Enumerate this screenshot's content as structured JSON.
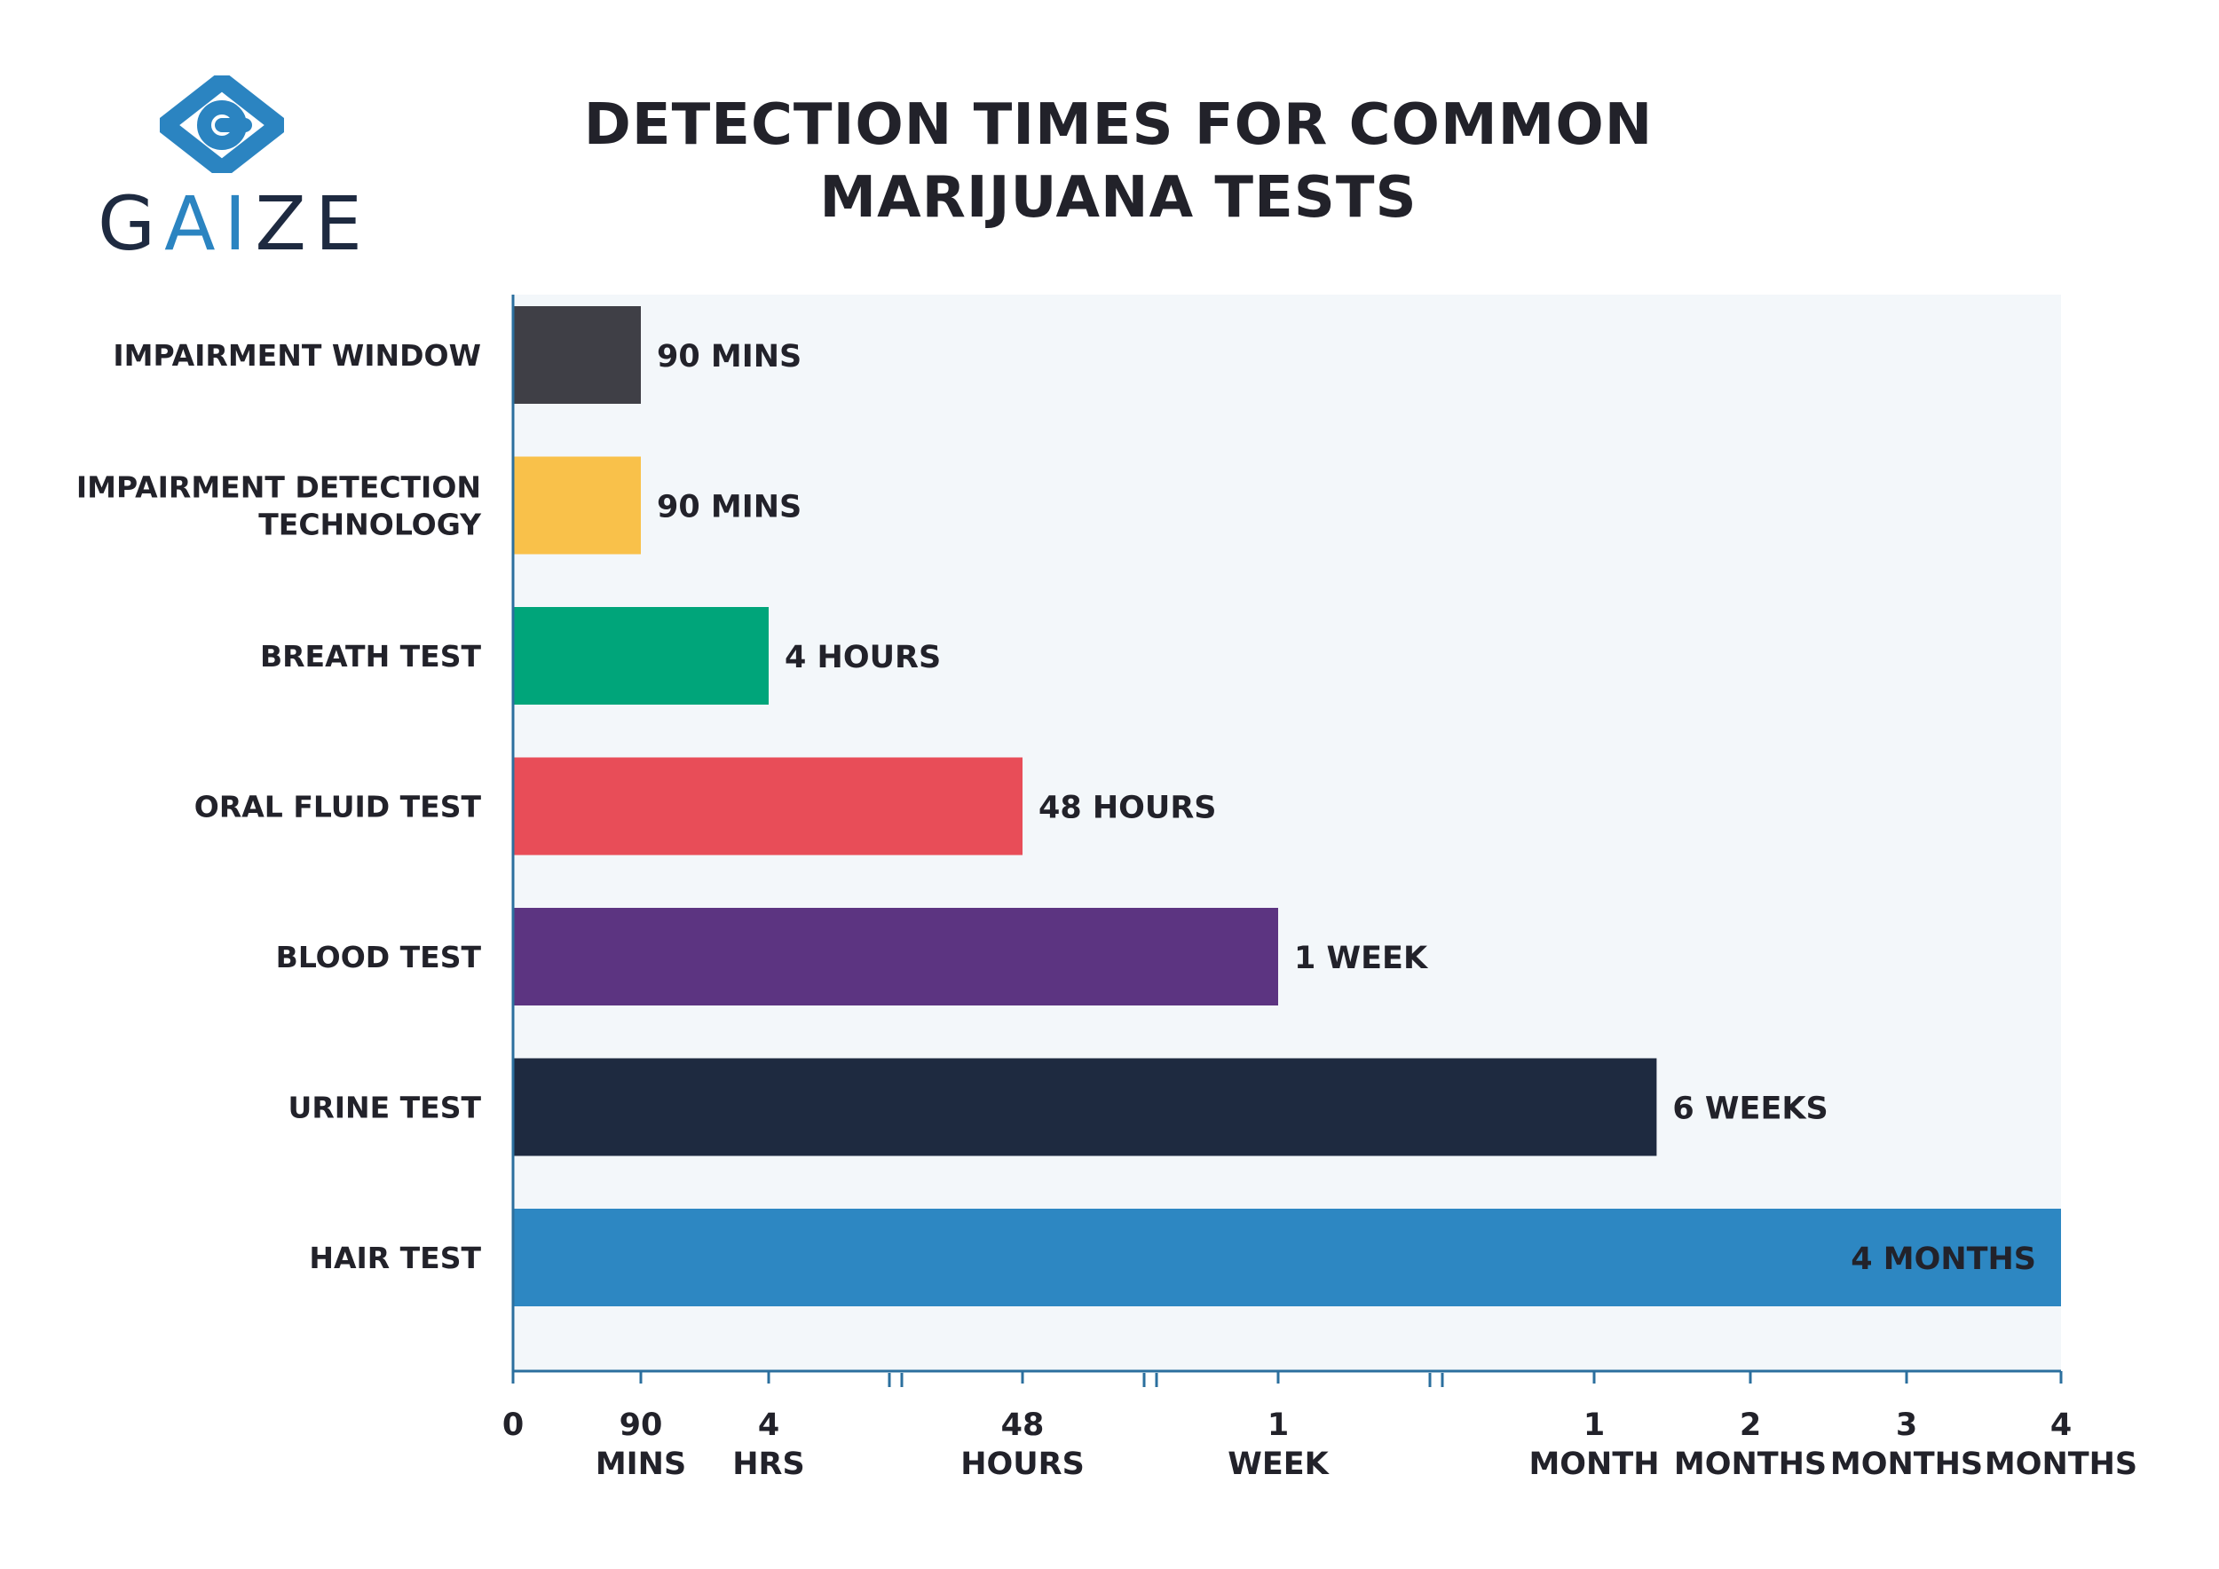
{
  "brand": {
    "name_parts": [
      "G",
      "AI",
      "ZE"
    ],
    "accent_color": "#2b84c1",
    "text_color": "#1e2a40"
  },
  "chart_data": {
    "type": "bar",
    "orientation": "horizontal",
    "title_lines": [
      "DETECTION TIMES FOR COMMON",
      "MARIJUANA TESTS"
    ],
    "categories": [
      [
        "IMPAIRMENT WINDOW"
      ],
      [
        "IMPAIRMENT DETECTION",
        "TECHNOLOGY"
      ],
      [
        "BREATH TEST"
      ],
      [
        "ORAL FLUID TEST"
      ],
      [
        "BLOOD TEST"
      ],
      [
        "URINE TEST"
      ],
      [
        "HAIR TEST"
      ]
    ],
    "values": [
      1.5,
      1.5,
      4,
      48,
      168,
      1008,
      2880
    ],
    "value_labels": [
      "90 MINS",
      "90 MINS",
      "4 HOURS",
      "48 HOURS",
      "1 WEEK",
      "6 WEEKS",
      "4 MONTHS"
    ],
    "value_unit": "hours",
    "colors": [
      "#3f3f46",
      "#f9c14a",
      "#00a57a",
      "#e84d58",
      "#5c3481",
      "#1e2a40",
      "#2d87c2"
    ],
    "x_axis": {
      "scale": "broken",
      "ticks": [
        {
          "value": 0,
          "lines": [
            "0"
          ]
        },
        {
          "value": 1.5,
          "lines": [
            "90",
            "MINS"
          ]
        },
        {
          "value": 4,
          "lines": [
            "4",
            "HRS"
          ]
        },
        {
          "value": 48,
          "lines": [
            "48",
            "HOURS"
          ]
        },
        {
          "value": 168,
          "lines": [
            "1",
            "WEEK"
          ]
        },
        {
          "value": 720,
          "lines": [
            "1",
            "MONTH"
          ]
        },
        {
          "value": 1440,
          "lines": [
            "2",
            "MONTHS"
          ]
        },
        {
          "value": 2160,
          "lines": [
            "3",
            "MONTHS"
          ]
        },
        {
          "value": 2880,
          "lines": [
            "4",
            "MONTHS"
          ]
        }
      ],
      "breaks": [
        [
          4,
          48
        ],
        [
          48,
          168
        ],
        [
          168,
          720
        ]
      ]
    },
    "grid": false,
    "legend": "none",
    "background_color": "#f3f7fa",
    "axis_color": "#2b6f9e"
  }
}
